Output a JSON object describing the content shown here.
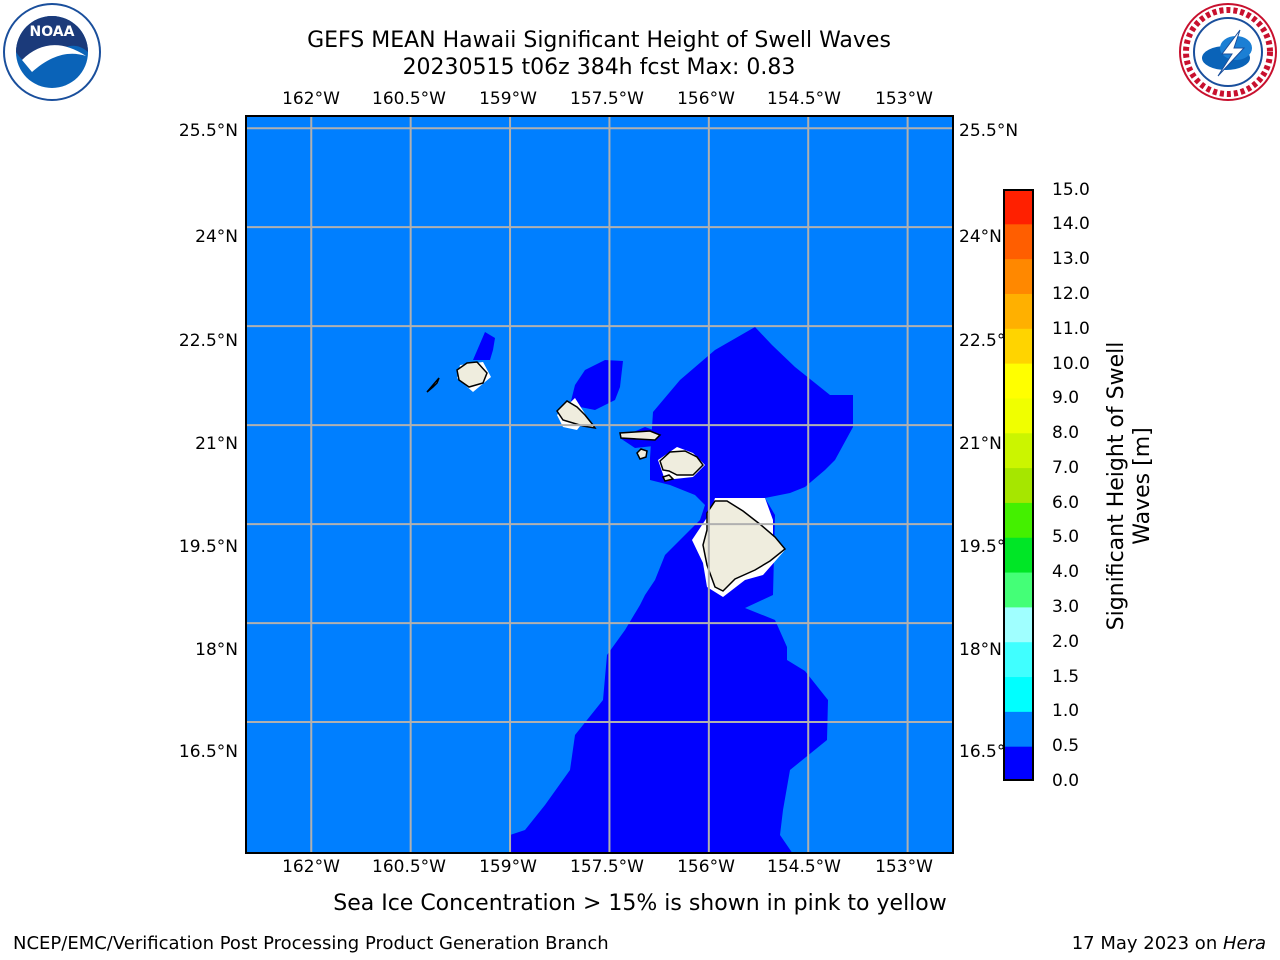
{
  "title": {
    "line1": "GEFS MEAN Hawaii Significant Height of Swell Waves",
    "line2": "20230515 t06z 384h fcst   Max: 0.83"
  },
  "map": {
    "lon_range": [
      -163.0,
      -152.3
    ],
    "lat_range": [
      14.5,
      25.7
    ],
    "lon_ticks": [
      "162°W",
      "160.5°W",
      "159°W",
      "157.5°W",
      "156°W",
      "154.5°W",
      "153°W"
    ],
    "lon_tick_values": [
      -162,
      -160.5,
      -159,
      -157.5,
      -156,
      -154.5,
      -153
    ],
    "lat_ticks": [
      "25.5°N",
      "24°N",
      "22.5°N",
      "21°N",
      "19.5°N",
      "18°N",
      "16.5°N"
    ],
    "lat_tick_values": [
      25.5,
      24,
      22.5,
      21,
      19.5,
      18,
      16.5
    ],
    "ocean_color": "#007fff",
    "swell_region_color": "#0000ff",
    "land_color": "#efedde",
    "grid_color": "#b0b0b0"
  },
  "colorbar": {
    "title": "Significant Height of Swell Waves [m]",
    "title_line1": "Significant Height of Swell",
    "title_line2": "Waves [m]",
    "levels": [
      "0.0",
      "0.5",
      "1.0",
      "1.5",
      "2.0",
      "3.0",
      "4.0",
      "5.0",
      "6.0",
      "7.0",
      "8.0",
      "9.0",
      "10.0",
      "11.0",
      "12.0",
      "13.0",
      "14.0",
      "15.0"
    ],
    "colors": [
      "#0000ff",
      "#007fff",
      "#00ffff",
      "#40ffff",
      "#a0ffff",
      "#44ff77",
      "#00e626",
      "#44f000",
      "#a6e600",
      "#cbf500",
      "#f0ff00",
      "#ffff00",
      "#ffd400",
      "#ffb000",
      "#ff8800",
      "#ff5e00",
      "#ff2000"
    ]
  },
  "sea_ice_note": "Sea Ice Concentration > 15% is shown in pink to yellow",
  "footer": {
    "left": "NCEP/EMC/Verification Post Processing Product Generation Branch",
    "right_date": "17 May 2023 on ",
    "right_host": "Hera"
  },
  "logos": {
    "noaa_icon": "noaa-logo-icon",
    "noaa_text": "NOAA",
    "nws_icon": "nws-logo-icon"
  }
}
